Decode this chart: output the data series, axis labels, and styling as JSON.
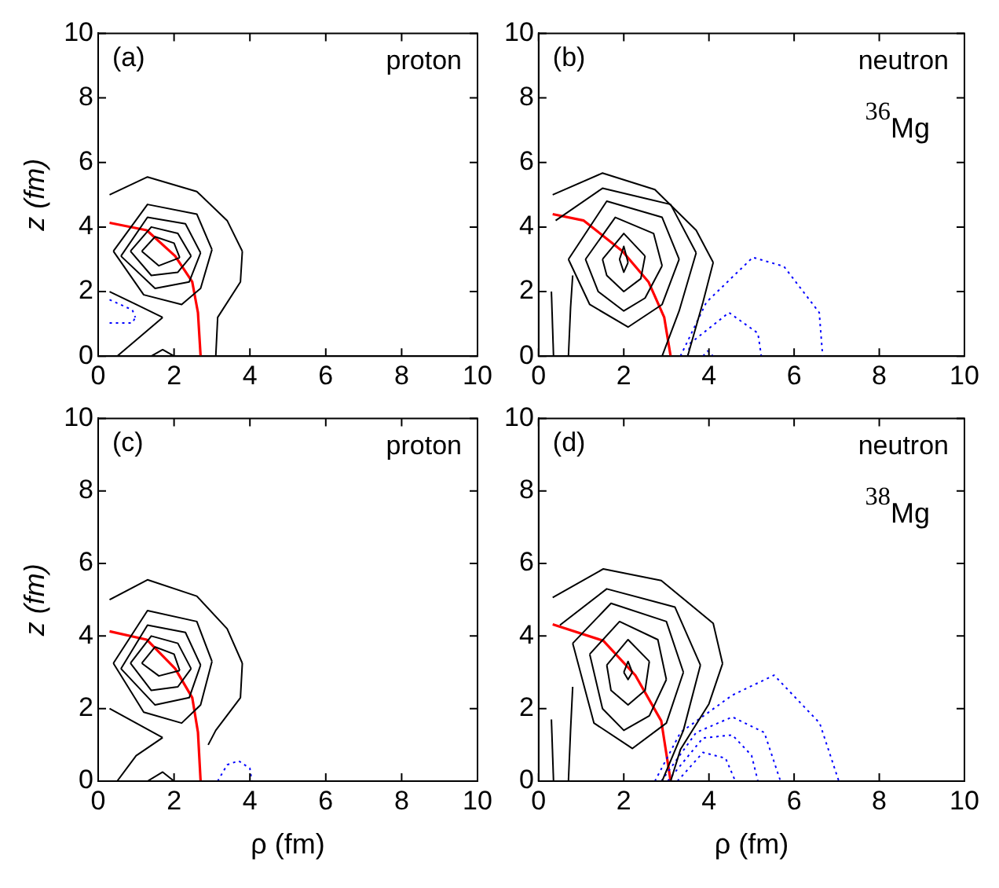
{
  "chart_data": [
    {
      "type": "line",
      "ylabel": "z (fm)",
      "annotations": [
        "(a)",
        "proton"
      ],
      "xlim": [
        0,
        10
      ],
      "ylim": [
        0,
        10
      ],
      "xticks": [
        0,
        2,
        4,
        6,
        8,
        10
      ],
      "yticks": [
        0,
        2,
        4,
        6,
        8,
        10
      ],
      "grid": false,
      "legend": false,
      "marker": "none",
      "series": [
        {
          "color": "#000000",
          "line_style": "solid",
          "x": [
            1.15,
            1.5,
            2.0,
            2.15
          ],
          "values": [
            3.25,
            3.7,
            3.5,
            3.05
          ]
        },
        {
          "color": "#000000",
          "line_style": "solid",
          "x": [
            1.15,
            1.6,
            2.15
          ],
          "values": [
            3.25,
            2.8,
            3.05
          ]
        },
        {
          "color": "#000000",
          "line_style": "solid",
          "x": [
            0.85,
            1.4,
            2.1,
            2.45
          ],
          "values": [
            3.25,
            4.0,
            3.8,
            3.1
          ]
        },
        {
          "color": "#000000",
          "line_style": "solid",
          "x": [
            0.85,
            1.4,
            2.1,
            2.45
          ],
          "values": [
            3.25,
            2.5,
            2.6,
            3.1
          ]
        },
        {
          "color": "#000000",
          "line_style": "solid",
          "x": [
            0.6,
            1.3,
            2.3,
            2.7
          ],
          "values": [
            3.1,
            4.3,
            4.1,
            3.2
          ]
        },
        {
          "color": "#000000",
          "line_style": "solid",
          "x": [
            0.6,
            1.5,
            2.4,
            2.7
          ],
          "values": [
            3.1,
            2.1,
            2.3,
            3.2
          ]
        },
        {
          "color": "#000000",
          "line_style": "solid",
          "x": [
            0.4,
            1.3,
            2.6,
            3.0
          ],
          "values": [
            3.25,
            4.7,
            4.4,
            3.3
          ]
        },
        {
          "color": "#000000",
          "line_style": "solid",
          "x": [
            0.4,
            1.2,
            2.2,
            2.7,
            3.0
          ],
          "values": [
            3.25,
            1.9,
            1.6,
            2.1,
            3.3
          ]
        },
        {
          "color": "#000000",
          "line_style": "solid",
          "x": [
            0.3,
            1.3,
            2.6,
            3.4,
            3.8
          ],
          "values": [
            5.0,
            5.55,
            5.1,
            4.2,
            3.25
          ]
        },
        {
          "color": "#000000",
          "line_style": "solid",
          "x": [
            3.1,
            3.15,
            3.75,
            3.8
          ],
          "values": [
            0,
            1.2,
            2.3,
            3.25
          ]
        },
        {
          "color": "#000000",
          "line_style": "solid",
          "x": [
            0.3,
            1.0,
            1.7
          ],
          "values": [
            2.0,
            1.6,
            1.2
          ]
        },
        {
          "color": "#000000",
          "line_style": "solid",
          "x": [
            0.5,
            1.0,
            1.7
          ],
          "values": [
            0,
            0.5,
            1.2
          ]
        },
        {
          "color": "#000000",
          "line_style": "solid",
          "x": [
            1.4,
            1.7,
            2.0
          ],
          "values": [
            0,
            0.2,
            0
          ]
        },
        {
          "color": "#0000ff",
          "line_style": "dotted",
          "x": [
            0.3,
            0.9,
            0.98
          ],
          "values": [
            1.75,
            1.43,
            1.2
          ]
        },
        {
          "color": "#0000ff",
          "line_style": "dotted",
          "x": [
            0.3,
            0.9,
            0.98
          ],
          "values": [
            1.03,
            1.03,
            1.2
          ]
        },
        {
          "color": "#ff0000",
          "line_style": "solid",
          "x": [
            0.3,
            1.28,
            2.03,
            2.48,
            2.63,
            2.7
          ],
          "values": [
            4.13,
            3.9,
            3.1,
            2.3,
            1.35,
            0
          ]
        }
      ]
    },
    {
      "type": "line",
      "annotations": [
        "(b)",
        "neutron",
        "$^{36}$Mg"
      ],
      "xlim": [
        0,
        10
      ],
      "ylim": [
        0,
        10
      ],
      "xticks": [
        0,
        2,
        4,
        6,
        8,
        10
      ],
      "yticks": [
        0,
        2,
        4,
        6,
        8,
        10
      ],
      "grid": false,
      "legend": false,
      "marker": "none",
      "series": [
        {
          "color": "#000000",
          "line_style": "solid",
          "x": [
            1.9,
            2.0,
            2.1
          ],
          "values": [
            3.0,
            3.4,
            2.9
          ]
        },
        {
          "color": "#000000",
          "line_style": "solid",
          "x": [
            1.9,
            2.0,
            2.1
          ],
          "values": [
            3.0,
            2.6,
            2.9
          ]
        },
        {
          "color": "#000000",
          "line_style": "solid",
          "x": [
            1.5,
            2.0,
            2.5
          ],
          "values": [
            3.0,
            3.8,
            3.1
          ]
        },
        {
          "color": "#000000",
          "line_style": "solid",
          "x": [
            1.5,
            1.6,
            2.0,
            2.4,
            2.5
          ],
          "values": [
            3.0,
            2.5,
            2.0,
            2.4,
            3.1
          ]
        },
        {
          "color": "#000000",
          "line_style": "solid",
          "x": [
            1.1,
            1.8,
            2.7,
            2.9
          ],
          "values": [
            3.0,
            4.3,
            3.8,
            2.8
          ]
        },
        {
          "color": "#000000",
          "line_style": "solid",
          "x": [
            1.1,
            1.4,
            2.0,
            2.5,
            2.9
          ],
          "values": [
            3.0,
            2.0,
            1.4,
            1.8,
            2.8
          ]
        },
        {
          "color": "#000000",
          "line_style": "solid",
          "x": [
            0.7,
            1.6,
            2.9,
            3.3
          ],
          "values": [
            3.0,
            4.8,
            4.3,
            3.0
          ]
        },
        {
          "color": "#000000",
          "line_style": "solid",
          "x": [
            0.7,
            1.2,
            2.1,
            2.9,
            3.3
          ],
          "values": [
            3.0,
            1.6,
            0.9,
            1.6,
            3.0
          ]
        },
        {
          "color": "#000000",
          "line_style": "solid",
          "x": [
            0.4,
            1.5,
            3.1,
            3.7
          ],
          "values": [
            4.2,
            5.2,
            4.7,
            3.2
          ]
        },
        {
          "color": "#000000",
          "line_style": "solid",
          "x": [
            2.9,
            3.3,
            3.7
          ],
          "values": [
            0,
            1.4,
            3.2
          ]
        },
        {
          "color": "#000000",
          "line_style": "solid",
          "x": [
            0.33,
            1.5,
            2.73,
            3.7,
            4.1
          ],
          "values": [
            5.0,
            5.67,
            5.16,
            3.9,
            2.9
          ]
        },
        {
          "color": "#000000",
          "line_style": "solid",
          "x": [
            3.5,
            3.86,
            4.1
          ],
          "values": [
            0,
            1.67,
            2.9
          ]
        },
        {
          "color": "#000000",
          "line_style": "solid",
          "x": [
            0.3,
            0.35
          ],
          "values": [
            2.0,
            0
          ]
        },
        {
          "color": "#000000",
          "line_style": "solid",
          "x": [
            0.7,
            0.75,
            0.8
          ],
          "values": [
            0,
            1.5,
            2.5
          ]
        },
        {
          "color": "#0000ff",
          "line_style": "dotted",
          "x": [
            3.33,
            3.94,
            5.03,
            5.76,
            6.59,
            6.67
          ],
          "values": [
            0,
            1.67,
            3.06,
            2.78,
            1.35,
            0
          ]
        },
        {
          "color": "#0000ff",
          "line_style": "dotted",
          "x": [
            3.5,
            3.56,
            4.47,
            5.15,
            5.23
          ],
          "values": [
            0,
            0.4,
            1.35,
            0.71,
            0
          ]
        },
        {
          "color": "#0000ff",
          "line_style": "dotted",
          "x": [
            3.86,
            3.97,
            4.1
          ],
          "values": [
            0,
            0.16,
            0
          ]
        },
        {
          "color": "#ff0000",
          "line_style": "solid",
          "x": [
            0.33,
            1.06,
            1.97,
            2.58,
            2.95,
            3.1
          ],
          "values": [
            4.4,
            4.2,
            3.25,
            2.3,
            1.2,
            0
          ]
        }
      ]
    },
    {
      "type": "line",
      "xlabel": "ρ (fm)",
      "ylabel": "z (fm)",
      "annotations": [
        "(c)",
        "proton"
      ],
      "xlim": [
        0,
        10
      ],
      "ylim": [
        0,
        10
      ],
      "xticks": [
        0,
        2,
        4,
        6,
        8,
        10
      ],
      "yticks": [
        0,
        2,
        4,
        6,
        8,
        10
      ],
      "grid": false,
      "legend": false,
      "marker": "none",
      "series": [
        {
          "color": "#000000",
          "line_style": "solid",
          "x": [
            1.15,
            1.5,
            2.0,
            2.15
          ],
          "values": [
            3.25,
            3.7,
            3.5,
            3.05
          ]
        },
        {
          "color": "#000000",
          "line_style": "solid",
          "x": [
            1.15,
            1.6,
            2.15
          ],
          "values": [
            3.25,
            2.9,
            3.05
          ]
        },
        {
          "color": "#000000",
          "line_style": "solid",
          "x": [
            0.85,
            1.4,
            2.1,
            2.45
          ],
          "values": [
            3.25,
            4.0,
            3.8,
            3.1
          ]
        },
        {
          "color": "#000000",
          "line_style": "solid",
          "x": [
            0.85,
            1.4,
            2.1,
            2.45
          ],
          "values": [
            3.25,
            2.5,
            2.6,
            3.1
          ]
        },
        {
          "color": "#000000",
          "line_style": "solid",
          "x": [
            0.6,
            1.3,
            2.3,
            2.7
          ],
          "values": [
            3.1,
            4.3,
            4.1,
            3.2
          ]
        },
        {
          "color": "#000000",
          "line_style": "solid",
          "x": [
            0.6,
            1.5,
            2.4,
            2.7
          ],
          "values": [
            3.1,
            2.1,
            2.3,
            3.2
          ]
        },
        {
          "color": "#000000",
          "line_style": "solid",
          "x": [
            0.4,
            1.3,
            2.6,
            3.0
          ],
          "values": [
            3.25,
            4.7,
            4.4,
            3.3
          ]
        },
        {
          "color": "#000000",
          "line_style": "solid",
          "x": [
            0.4,
            1.2,
            2.2,
            2.7,
            3.0
          ],
          "values": [
            3.25,
            1.9,
            1.6,
            2.1,
            3.3
          ]
        },
        {
          "color": "#000000",
          "line_style": "solid",
          "x": [
            0.3,
            1.3,
            2.6,
            3.4,
            3.8
          ],
          "values": [
            5.0,
            5.55,
            5.1,
            4.2,
            3.25
          ]
        },
        {
          "color": "#000000",
          "line_style": "solid",
          "x": [
            2.9,
            3.1,
            3.75,
            3.8
          ],
          "values": [
            1.0,
            1.4,
            2.3,
            3.25
          ]
        },
        {
          "color": "#000000",
          "line_style": "solid",
          "x": [
            0.3,
            1.0,
            1.7
          ],
          "values": [
            2.0,
            1.6,
            1.2
          ]
        },
        {
          "color": "#000000",
          "line_style": "solid",
          "x": [
            0.5,
            1.0,
            1.7
          ],
          "values": [
            0,
            0.7,
            1.2
          ]
        },
        {
          "color": "#000000",
          "line_style": "solid",
          "x": [
            1.3,
            1.7,
            2.0
          ],
          "values": [
            0,
            0.25,
            0
          ]
        },
        {
          "color": "#0000ff",
          "line_style": "dotted",
          "x": [
            3.15,
            3.4,
            3.7,
            4.0,
            4.05
          ],
          "values": [
            0,
            0.45,
            0.56,
            0.35,
            0
          ]
        },
        {
          "color": "#ff0000",
          "line_style": "solid",
          "x": [
            0.3,
            1.28,
            2.03,
            2.48,
            2.63,
            2.7
          ],
          "values": [
            4.13,
            3.9,
            3.1,
            2.3,
            1.35,
            0
          ]
        }
      ]
    },
    {
      "type": "line",
      "xlabel": "ρ (fm)",
      "annotations": [
        "(d)",
        "neutron",
        "$^{38}$Mg"
      ],
      "xlim": [
        0,
        10
      ],
      "ylim": [
        0,
        10
      ],
      "xticks": [
        0,
        2,
        4,
        6,
        8,
        10
      ],
      "yticks": [
        0,
        2,
        4,
        6,
        8,
        10
      ],
      "grid": false,
      "legend": false,
      "marker": "none",
      "series": [
        {
          "color": "#000000",
          "line_style": "solid",
          "x": [
            2.0,
            2.1,
            2.2
          ],
          "values": [
            3.0,
            3.3,
            3.0
          ]
        },
        {
          "color": "#000000",
          "line_style": "solid",
          "x": [
            2.0,
            2.1,
            2.2
          ],
          "values": [
            3.0,
            2.8,
            3.0
          ]
        },
        {
          "color": "#000000",
          "line_style": "solid",
          "x": [
            1.6,
            2.1,
            2.6
          ],
          "values": [
            3.2,
            3.9,
            3.3
          ]
        },
        {
          "color": "#000000",
          "line_style": "solid",
          "x": [
            1.6,
            1.7,
            2.1,
            2.5,
            2.6
          ],
          "values": [
            3.2,
            2.5,
            2.1,
            2.5,
            3.3
          ]
        },
        {
          "color": "#000000",
          "line_style": "solid",
          "x": [
            1.2,
            1.9,
            2.8,
            3.0
          ],
          "values": [
            3.5,
            4.4,
            3.9,
            2.8
          ]
        },
        {
          "color": "#000000",
          "line_style": "solid",
          "x": [
            1.2,
            1.5,
            2.0,
            2.6,
            3.0
          ],
          "values": [
            3.5,
            2.0,
            1.4,
            1.8,
            2.8
          ]
        },
        {
          "color": "#000000",
          "line_style": "solid",
          "x": [
            0.8,
            1.7,
            3.0,
            3.4
          ],
          "values": [
            3.8,
            4.9,
            4.4,
            3.0
          ]
        },
        {
          "color": "#000000",
          "line_style": "solid",
          "x": [
            0.8,
            1.3,
            2.2,
            3.0,
            3.4
          ],
          "values": [
            3.8,
            1.6,
            0.9,
            1.6,
            3.0
          ]
        },
        {
          "color": "#000000",
          "line_style": "solid",
          "x": [
            0.5,
            1.6,
            3.2,
            3.8
          ],
          "values": [
            4.3,
            5.3,
            4.8,
            3.2
          ]
        },
        {
          "color": "#000000",
          "line_style": "solid",
          "x": [
            2.9,
            3.4,
            3.8
          ],
          "values": [
            0,
            1.4,
            3.2
          ]
        },
        {
          "color": "#000000",
          "line_style": "solid",
          "x": [
            0.33,
            1.52,
            2.88,
            4.1,
            4.32
          ],
          "values": [
            5.06,
            5.85,
            5.53,
            4.35,
            3.24
          ]
        },
        {
          "color": "#000000",
          "line_style": "solid",
          "x": [
            3.1,
            3.33,
            4.0,
            4.32
          ],
          "values": [
            0,
            0.87,
            2.13,
            3.24
          ]
        },
        {
          "color": "#000000",
          "line_style": "solid",
          "x": [
            0.3,
            0.35
          ],
          "values": [
            1.7,
            0
          ]
        },
        {
          "color": "#000000",
          "line_style": "solid",
          "x": [
            0.7,
            0.75,
            0.8
          ],
          "values": [
            0,
            1.4,
            2.6
          ]
        },
        {
          "color": "#0000ff",
          "line_style": "dotted",
          "x": [
            2.73,
            3.33,
            4.55,
            5.53,
            6.6,
            7.05
          ],
          "values": [
            0,
            1.34,
            2.37,
            2.92,
            1.6,
            0
          ]
        },
        {
          "color": "#0000ff",
          "line_style": "dotted",
          "x": [
            2.88,
            3.7,
            4.55,
            5.3,
            5.68
          ],
          "values": [
            0,
            1.34,
            1.77,
            1.34,
            0
          ]
        },
        {
          "color": "#0000ff",
          "line_style": "dotted",
          "x": [
            3.03,
            3.86,
            4.55,
            5.0,
            5.15
          ],
          "values": [
            0,
            1.19,
            1.27,
            0.71,
            0
          ]
        },
        {
          "color": "#0000ff",
          "line_style": "dotted",
          "x": [
            3.26,
            3.86,
            4.39,
            4.62
          ],
          "values": [
            0,
            0.79,
            0.63,
            0
          ]
        },
        {
          "color": "#ff0000",
          "line_style": "solid",
          "x": [
            0.33,
            1.52,
            2.27,
            2.88,
            3.1
          ],
          "values": [
            4.32,
            3.87,
            2.92,
            1.66,
            0
          ]
        }
      ]
    }
  ]
}
